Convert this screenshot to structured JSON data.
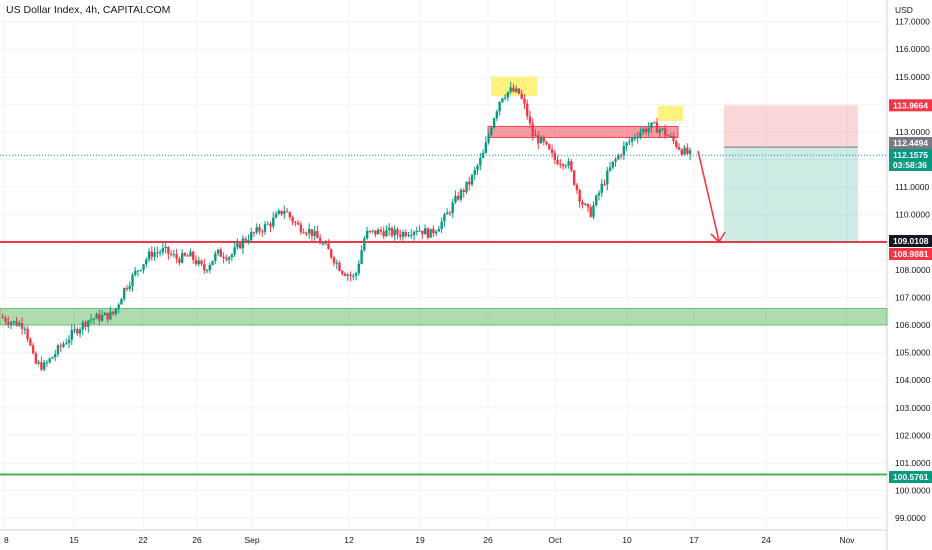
{
  "chart_data": {
    "type": "candlestick",
    "title": "US Dollar Index, 4h, CAPITALCOM",
    "currency_label": "USD",
    "ylim": [
      98.6,
      117.9
    ],
    "x_tick_labels": [
      "8",
      "15",
      "22",
      "26",
      "Sep",
      "12",
      "19",
      "26",
      "Oct",
      "10",
      "17",
      "24",
      "Nov"
    ],
    "y_tick_labels": [
      99,
      100,
      101,
      102,
      103,
      104,
      105,
      106,
      107,
      108,
      109,
      110,
      111,
      112,
      113,
      114,
      115,
      116,
      117
    ],
    "price_tags": [
      {
        "label": "113.9664",
        "value": 113.9664,
        "color": "#f23645"
      },
      {
        "label": "112.4494",
        "value": 112.4494,
        "color": "#787b86"
      },
      {
        "label": "112.1575",
        "value": 112.1575,
        "color": "#089981",
        "sublabel": "03:58:36"
      },
      {
        "label": "109.0108",
        "value": 109.0108,
        "color": "#131722"
      },
      {
        "label": "108.9881",
        "value": 108.9881,
        "color": "#f23645"
      },
      {
        "label": "100.5761",
        "value": 100.5761,
        "color": "#089981"
      }
    ],
    "price_path": [
      [
        0,
        106.3
      ],
      [
        0.014,
        106.1
      ],
      [
        0.028,
        106.0
      ],
      [
        0.039,
        104.6
      ],
      [
        0.05,
        104.5
      ],
      [
        0.068,
        105.2
      ],
      [
        0.085,
        105.8
      ],
      [
        0.1,
        106.2
      ],
      [
        0.115,
        106.3
      ],
      [
        0.128,
        106.4
      ],
      [
        0.14,
        107.3
      ],
      [
        0.155,
        108.0
      ],
      [
        0.17,
        108.6
      ],
      [
        0.185,
        108.7
      ],
      [
        0.2,
        108.4
      ],
      [
        0.215,
        108.5
      ],
      [
        0.23,
        108.0
      ],
      [
        0.245,
        108.6
      ],
      [
        0.26,
        108.5
      ],
      [
        0.275,
        109.1
      ],
      [
        0.29,
        109.4
      ],
      [
        0.305,
        109.7
      ],
      [
        0.32,
        110.2
      ],
      [
        0.335,
        109.6
      ],
      [
        0.35,
        109.4
      ],
      [
        0.37,
        108.7
      ],
      [
        0.385,
        108.0
      ],
      [
        0.4,
        107.7
      ],
      [
        0.412,
        109.3
      ],
      [
        0.43,
        109.4
      ],
      [
        0.45,
        109.3
      ],
      [
        0.47,
        109.5
      ],
      [
        0.485,
        109.3
      ],
      [
        0.5,
        109.8
      ],
      [
        0.515,
        110.6
      ],
      [
        0.53,
        111.2
      ],
      [
        0.545,
        112.2
      ],
      [
        0.555,
        113.4
      ],
      [
        0.565,
        114.3
      ],
      [
        0.575,
        114.5
      ],
      [
        0.585,
        114.4
      ],
      [
        0.593,
        113.8
      ],
      [
        0.6,
        112.9
      ],
      [
        0.612,
        112.6
      ],
      [
        0.625,
        112.0
      ],
      [
        0.64,
        111.9
      ],
      [
        0.655,
        110.5
      ],
      [
        0.665,
        110.0
      ],
      [
        0.678,
        111.0
      ],
      [
        0.69,
        111.8
      ],
      [
        0.705,
        112.5
      ],
      [
        0.72,
        113.0
      ],
      [
        0.735,
        113.2
      ],
      [
        0.745,
        113.1
      ],
      [
        0.755,
        112.8
      ],
      [
        0.77,
        112.3
      ],
      [
        0.778,
        112.16
      ]
    ],
    "zones": [
      {
        "kind": "support",
        "from": 106.0,
        "to": 106.6,
        "color": "#4caf50"
      },
      {
        "kind": "resistance",
        "from": 112.8,
        "to": 113.2,
        "color": "#f23645"
      }
    ],
    "levels": [
      {
        "value": 109.01,
        "color": "#f23645"
      },
      {
        "value": 100.58,
        "color": "#4caf50"
      }
    ],
    "highlights": [
      {
        "y_from": 114.3,
        "y_to": 115.0,
        "color": "#ffeb3b"
      },
      {
        "y_from": 113.4,
        "y_to": 113.95,
        "color": "#ffeb3b"
      }
    ],
    "position": {
      "type": "short",
      "stop": 113.9664,
      "entry": 112.4494,
      "target": 109.0108
    },
    "grid": true,
    "legend": "none"
  }
}
